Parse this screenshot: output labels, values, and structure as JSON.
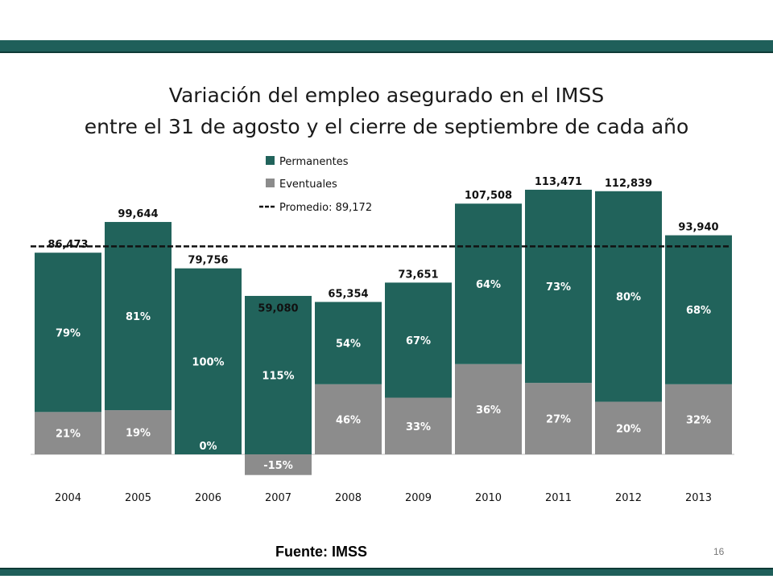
{
  "page": {
    "title_line1": "Variación del empleo asegurado en el IMSS",
    "title_line2": "entre el 31 de agosto y el cierre de septiembre de cada año",
    "source": "Fuente: IMSS",
    "page_number": "16"
  },
  "colors": {
    "permanentes": "#21635b",
    "eventuales": "#8c8c8c",
    "band": "#1f5f5a"
  },
  "chart_data": {
    "type": "bar",
    "stacked": true,
    "categories": [
      "2004",
      "2005",
      "2006",
      "2007",
      "2008",
      "2009",
      "2010",
      "2011",
      "2012",
      "2013"
    ],
    "totals": [
      86473,
      99644,
      79756,
      59080,
      65354,
      73651,
      107508,
      113471,
      112839,
      93940
    ],
    "total_labels": [
      "86,473",
      "99,644",
      "79,756",
      "59,080",
      "65,354",
      "73,651",
      "107,508",
      "113,471",
      "112,839",
      "93,940"
    ],
    "series": [
      {
        "name": "Permanentes",
        "percent_labels": [
          "79%",
          "81%",
          "100%",
          "115%",
          "54%",
          "67%",
          "64%",
          "73%",
          "80%",
          "68%"
        ],
        "shares": [
          0.79,
          0.81,
          1.0,
          1.15,
          0.54,
          0.67,
          0.64,
          0.73,
          0.8,
          0.68
        ]
      },
      {
        "name": "Eventuales",
        "percent_labels": [
          "21%",
          "19%",
          "0%",
          "-15%",
          "46%",
          "33%",
          "36%",
          "27%",
          "20%",
          "32%"
        ],
        "shares": [
          0.21,
          0.19,
          0.0,
          -0.15,
          0.46,
          0.33,
          0.36,
          0.27,
          0.2,
          0.32
        ]
      }
    ],
    "average": {
      "label": "Promedio: 89,172",
      "value": 89172
    },
    "legend_position": "top-right",
    "grid": false
  }
}
